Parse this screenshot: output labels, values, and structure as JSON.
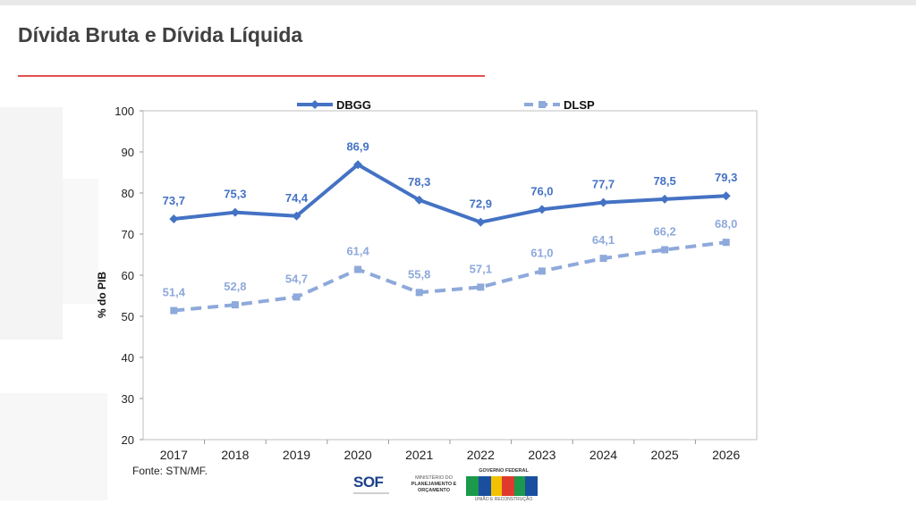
{
  "slide": {
    "title": "Dívida Bruta e Dívida Líquida",
    "source": "Fonte: STN/MF."
  },
  "logos": {
    "sof": "SOF",
    "ministry_line1": "MINISTÉRIO DO",
    "ministry_line2": "PLANEJAMENTO E",
    "ministry_line3": "ORÇAMENTO",
    "gov_top": "GOVERNO FEDERAL",
    "gov_bottom": "UNIÃO E RECONSTRUÇÃO"
  },
  "chart_data": {
    "type": "line",
    "title": "",
    "xlabel": "",
    "ylabel": "% do PIB",
    "x": [
      "2017",
      "2018",
      "2019",
      "2020",
      "2021",
      "2022",
      "2023",
      "2024",
      "2025",
      "2026"
    ],
    "ylim": [
      20,
      100
    ],
    "yticks": [
      20,
      30,
      40,
      50,
      60,
      70,
      80,
      90,
      100
    ],
    "grid": false,
    "legend_position": "top",
    "series": [
      {
        "name": "DBGG",
        "values": [
          73.7,
          75.3,
          74.4,
          86.9,
          78.3,
          72.9,
          76.0,
          77.7,
          78.5,
          79.3
        ],
        "labels": [
          "73,7",
          "75,3",
          "74,4",
          "86,9",
          "78,3",
          "72,9",
          "76,0",
          "77,7",
          "78,5",
          "79,3"
        ],
        "color": "#4472c4",
        "style": "solid",
        "marker": "diamond"
      },
      {
        "name": "DLSP",
        "values": [
          51.4,
          52.8,
          54.7,
          61.4,
          55.8,
          57.1,
          61.0,
          64.1,
          66.2,
          68.0
        ],
        "labels": [
          "51,4",
          "52,8",
          "54,7",
          "61,4",
          "55,8",
          "57,1",
          "61,0",
          "64,1",
          "66,2",
          "68,0"
        ],
        "color": "#8ea9db",
        "style": "dashed",
        "marker": "square"
      }
    ]
  }
}
